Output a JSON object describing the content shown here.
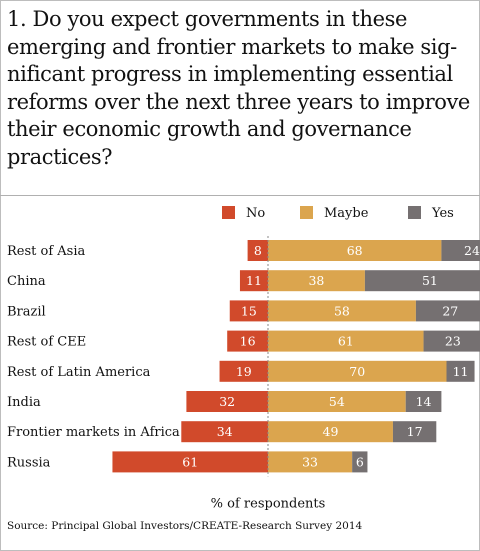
{
  "title_lines": [
    "1. Do you expect governments in these",
    "emerging and frontier markets to make sig-",
    "nificant progress in implementing essential",
    "reforms over the next three years to improve",
    "their economic growth and governance",
    "practices?"
  ],
  "source": "Source: Principal Global Investors/CREATE-Research Survey 2014",
  "colors": {
    "no": "#d14a2b",
    "maybe": "#dba54e",
    "yes": "#757071",
    "text": "#111111",
    "bar_label": "#ffffff"
  },
  "chart_data": {
    "type": "bar",
    "orientation": "horizontal-diverging",
    "categories": [
      "Rest of Asia",
      "China",
      "Brazil",
      "Rest of CEE",
      "Rest of Latin America",
      "India",
      "Frontier markets in Africa",
      "Russia"
    ],
    "series": [
      {
        "name": "No",
        "key": "no",
        "values": [
          8,
          11,
          15,
          16,
          19,
          32,
          34,
          61
        ]
      },
      {
        "name": "Maybe",
        "key": "maybe",
        "values": [
          68,
          38,
          58,
          61,
          70,
          54,
          49,
          33
        ]
      },
      {
        "name": "Yes",
        "key": "yes",
        "values": [
          24,
          51,
          27,
          23,
          11,
          14,
          17,
          6
        ]
      }
    ],
    "xlabel": "% of respondents",
    "legend_position": "top",
    "grid": false
  }
}
